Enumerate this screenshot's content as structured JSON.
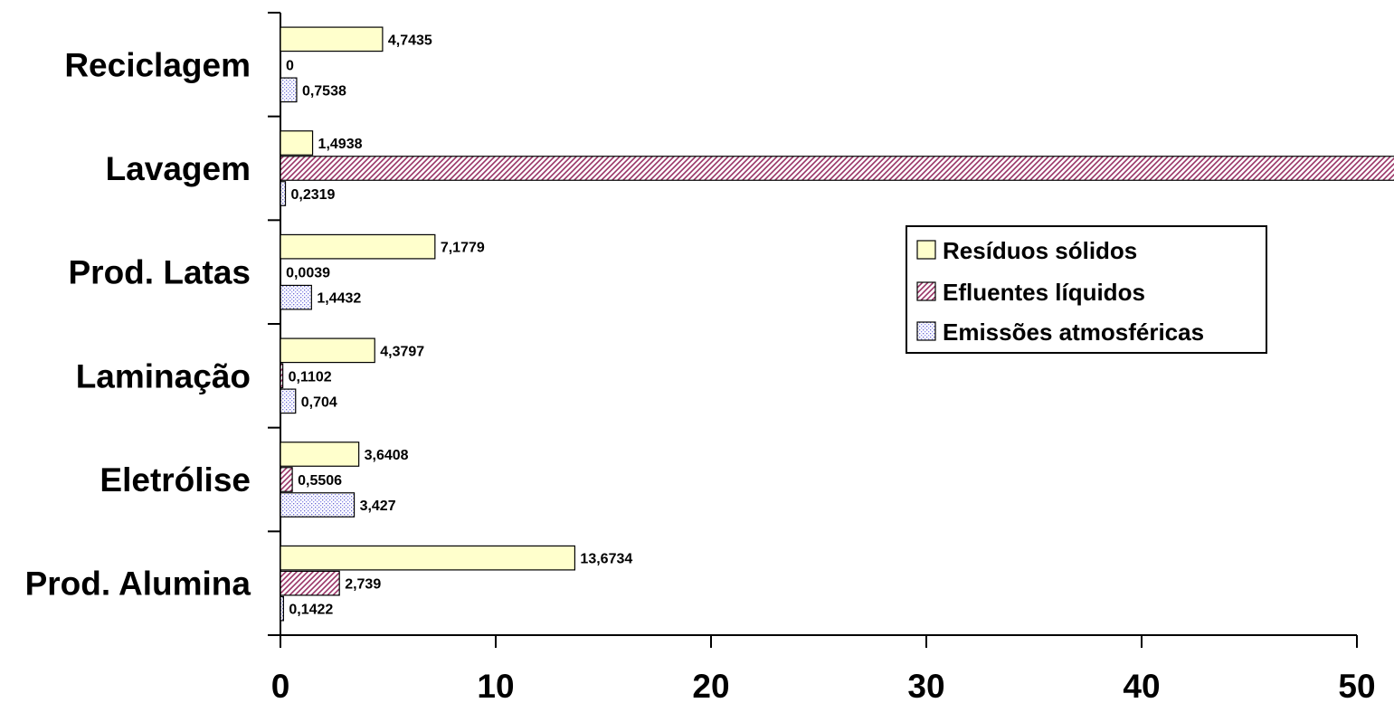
{
  "chart_data": {
    "type": "bar",
    "orientation": "horizontal",
    "categories": [
      "Prod. Alumina",
      "Eletrólise",
      "Laminação",
      "Prod. Latas",
      "Lavagem",
      "Reciclagem"
    ],
    "series": [
      {
        "name": "Resíduos sólidos",
        "values": [
          13.6734,
          3.6408,
          4.3797,
          7.1779,
          1.4938,
          4.7435
        ],
        "labels": [
          "13,6734",
          "3,6408",
          "4,3797",
          "7,1779",
          "1,4938",
          "4,7435"
        ],
        "fill": "#ffffcc",
        "pattern": "solid"
      },
      {
        "name": "Efluentes líquidos",
        "values": [
          2.739,
          0.5506,
          0.1102,
          0.0039,
          null,
          0
        ],
        "labels": [
          "2,739",
          "0,5506",
          "0,1102",
          "0,0039",
          "",
          "0"
        ],
        "fill": "#993366",
        "pattern": "diagonal-hatch"
      },
      {
        "name": "Emissões atmosféricas",
        "values": [
          0.1422,
          3.427,
          0.704,
          1.4432,
          0.2319,
          0.7538
        ],
        "labels": [
          "0,1422",
          "3,427",
          "0,704",
          "1,4432",
          "0,2319",
          "0,7538"
        ],
        "fill": "#9999ff",
        "pattern": "dots"
      }
    ],
    "x_ticks": [
      "0",
      "10",
      "20",
      "30",
      "40",
      "50"
    ],
    "xlim": [
      0,
      50
    ],
    "xlabel": "",
    "ylabel": "",
    "title": "",
    "grid": false,
    "legend": "right",
    "notes": "Lavagem / Efluentes líquidos bar exceeds axis maximum (clipped beyond 50, value label not shown)"
  }
}
